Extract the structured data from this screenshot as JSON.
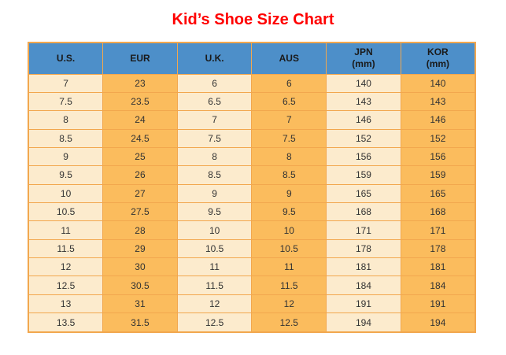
{
  "title": "Kid’s Shoe Size Chart",
  "colors": {
    "title_red": "#FF0000",
    "header_blue": "#4D8FC9",
    "row_cream": "#FCEBCD",
    "row_orange": "#FBBC5D",
    "cell_border": "#F2A74E",
    "text_dark": "#333333",
    "background": "#FFFFFF"
  },
  "chart_data": {
    "type": "table",
    "title": "Kid’s Shoe Size Chart",
    "columns": [
      "U.S.",
      "EUR",
      "U.K.",
      "AUS",
      "JPN\n(mm)",
      "KOR\n(mm)"
    ],
    "rows": [
      [
        "7",
        "23",
        "6",
        "6",
        "140",
        "140"
      ],
      [
        "7.5",
        "23.5",
        "6.5",
        "6.5",
        "143",
        "143"
      ],
      [
        "8",
        "24",
        "7",
        "7",
        "146",
        "146"
      ],
      [
        "8.5",
        "24.5",
        "7.5",
        "7.5",
        "152",
        "152"
      ],
      [
        "9",
        "25",
        "8",
        "8",
        "156",
        "156"
      ],
      [
        "9.5",
        "26",
        "8.5",
        "8.5",
        "159",
        "159"
      ],
      [
        "10",
        "27",
        "9",
        "9",
        "165",
        "165"
      ],
      [
        "10.5",
        "27.5",
        "9.5",
        "9.5",
        "168",
        "168"
      ],
      [
        "11",
        "28",
        "10",
        "10",
        "171",
        "171"
      ],
      [
        "11.5",
        "29",
        "10.5",
        "10.5",
        "178",
        "178"
      ],
      [
        "12",
        "30",
        "11",
        "11",
        "181",
        "181"
      ],
      [
        "12.5",
        "30.5",
        "11.5",
        "11.5",
        "184",
        "184"
      ],
      [
        "13",
        "31",
        "12",
        "12",
        "191",
        "191"
      ],
      [
        "13.5",
        "31.5",
        "12.5",
        "12.5",
        "194",
        "194"
      ]
    ],
    "layout": {
      "header_background": "#4D8FC9",
      "column_stripe_colors": [
        "#FCEBCD",
        "#FBBC5D"
      ],
      "grid": true
    }
  }
}
